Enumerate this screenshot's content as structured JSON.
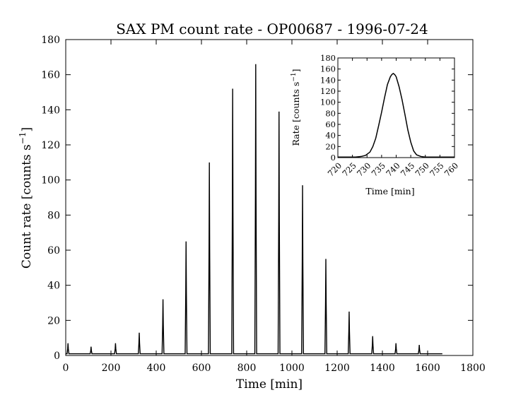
{
  "chart_data": [
    {
      "type": "line",
      "title": "SAX PM count rate - OP00687 - 1996-07-24",
      "xlabel": "Time [min]",
      "ylabel_text": "Count rate [counts s",
      "ylabel_sup": "−1",
      "ylabel_close": "]",
      "xlim": [
        0,
        1800
      ],
      "ylim": [
        0,
        180
      ],
      "xticks": [
        0,
        200,
        400,
        600,
        800,
        1000,
        1200,
        1400,
        1600,
        1800
      ],
      "yticks": [
        0,
        20,
        40,
        60,
        80,
        100,
        120,
        140,
        160,
        180
      ],
      "baseline": 1,
      "data_end": 1665,
      "peaks": [
        {
          "x": 10,
          "y": 7
        },
        {
          "x": 112,
          "y": 5
        },
        {
          "x": 220,
          "y": 7
        },
        {
          "x": 325,
          "y": 13
        },
        {
          "x": 430,
          "y": 32
        },
        {
          "x": 532,
          "y": 65
        },
        {
          "x": 635,
          "y": 110
        },
        {
          "x": 738,
          "y": 152
        },
        {
          "x": 840,
          "y": 166
        },
        {
          "x": 943,
          "y": 139
        },
        {
          "x": 1047,
          "y": 97
        },
        {
          "x": 1150,
          "y": 55
        },
        {
          "x": 1253,
          "y": 25
        },
        {
          "x": 1357,
          "y": 11
        },
        {
          "x": 1460,
          "y": 7
        },
        {
          "x": 1563,
          "y": 6
        }
      ],
      "grid": false,
      "color": "#000000"
    },
    {
      "type": "line",
      "title": "",
      "xlabel": "Time [min]",
      "ylabel_text": "Rate [counts s",
      "ylabel_sup": "−1",
      "ylabel_close": "]",
      "xlim": [
        720,
        760
      ],
      "ylim": [
        0,
        180
      ],
      "xticks": [
        720,
        725,
        730,
        735,
        740,
        745,
        750,
        755,
        760
      ],
      "yticks": [
        0,
        20,
        40,
        60,
        80,
        100,
        120,
        140,
        160,
        180
      ],
      "x": [
        720,
        726,
        728,
        729.5,
        731,
        732,
        733,
        734,
        735,
        736,
        737,
        738,
        738.5,
        739,
        739.5,
        740,
        741,
        742,
        743,
        744,
        745,
        746,
        747,
        748.5,
        750,
        760
      ],
      "y": [
        1,
        1,
        2,
        4,
        10,
        20,
        35,
        58,
        82,
        108,
        132,
        146,
        150,
        152,
        150,
        146,
        128,
        105,
        78,
        50,
        28,
        12,
        5,
        2,
        1,
        1
      ],
      "grid": false,
      "color": "#000000"
    }
  ]
}
